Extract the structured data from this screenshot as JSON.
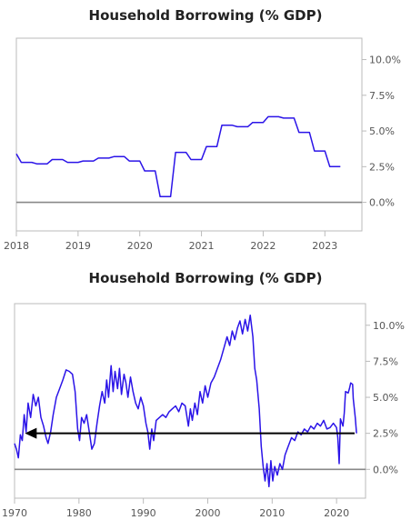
{
  "chart_data": [
    {
      "type": "line",
      "title": "Household Borrowing (% GDP)",
      "xlabel": "",
      "ylabel": "",
      "x_ticks": [
        "2018",
        "2019",
        "2020",
        "2021",
        "2022",
        "2023"
      ],
      "y_ticks": [
        "0.0%",
        "2.5%",
        "5.0%",
        "7.5%",
        "10.0%"
      ],
      "xlim": [
        2018.0,
        2023.6
      ],
      "ylim": [
        -2.0,
        11.5
      ],
      "grid": false,
      "colors": {
        "series": "#2b14e8",
        "zero_line": "#888888",
        "frame": "#bbbbbb"
      },
      "series": [
        {
          "values": [
            [
              2018.0,
              3.4
            ],
            [
              2018.08,
              2.8
            ],
            [
              2018.25,
              2.8
            ],
            [
              2018.33,
              2.7
            ],
            [
              2018.5,
              2.7
            ],
            [
              2018.58,
              3.0
            ],
            [
              2018.75,
              3.0
            ],
            [
              2018.83,
              2.8
            ],
            [
              2019.0,
              2.8
            ],
            [
              2019.08,
              2.9
            ],
            [
              2019.25,
              2.9
            ],
            [
              2019.33,
              3.1
            ],
            [
              2019.5,
              3.1
            ],
            [
              2019.58,
              3.2
            ],
            [
              2019.75,
              3.2
            ],
            [
              2019.83,
              2.9
            ],
            [
              2020.0,
              2.9
            ],
            [
              2020.08,
              2.2
            ],
            [
              2020.25,
              2.2
            ],
            [
              2020.33,
              0.4
            ],
            [
              2020.5,
              0.4
            ],
            [
              2020.58,
              3.5
            ],
            [
              2020.75,
              3.5
            ],
            [
              2020.83,
              3.0
            ],
            [
              2021.0,
              3.0
            ],
            [
              2021.08,
              3.9
            ],
            [
              2021.25,
              3.9
            ],
            [
              2021.33,
              5.4
            ],
            [
              2021.5,
              5.4
            ],
            [
              2021.58,
              5.3
            ],
            [
              2021.75,
              5.3
            ],
            [
              2021.83,
              5.6
            ],
            [
              2022.0,
              5.6
            ],
            [
              2022.08,
              6.0
            ],
            [
              2022.25,
              6.0
            ],
            [
              2022.33,
              5.9
            ],
            [
              2022.5,
              5.9
            ],
            [
              2022.58,
              4.9
            ],
            [
              2022.75,
              4.9
            ],
            [
              2022.83,
              3.6
            ],
            [
              2023.0,
              3.6
            ],
            [
              2023.08,
              2.5
            ],
            [
              2023.25,
              2.5
            ]
          ]
        }
      ]
    },
    {
      "type": "line",
      "title": "Household Borrowing (% GDP)",
      "xlabel": "",
      "ylabel": "",
      "x_ticks": [
        "1970",
        "1980",
        "1990",
        "2000",
        "2010",
        "2020"
      ],
      "y_ticks": [
        "0.0%",
        "2.5%",
        "5.0%",
        "7.5%",
        "10.0%"
      ],
      "xlim": [
        1970.0,
        2024.5
      ],
      "ylim": [
        -2.0,
        11.5
      ],
      "grid": false,
      "annotation": {
        "type": "arrow",
        "from": [
          2022.8,
          2.5
        ],
        "to": [
          1971.6,
          2.5
        ],
        "color": "#000000"
      },
      "colors": {
        "series": "#2b14e8",
        "zero_line": "#888888",
        "frame": "#bbbbbb",
        "arrow": "#000000"
      },
      "series": [
        {
          "values": [
            [
              1970.0,
              1.8
            ],
            [
              1970.3,
              1.4
            ],
            [
              1970.6,
              0.8
            ],
            [
              1970.9,
              2.4
            ],
            [
              1971.2,
              2.0
            ],
            [
              1971.5,
              3.8
            ],
            [
              1971.8,
              2.6
            ],
            [
              1972.1,
              4.6
            ],
            [
              1972.5,
              3.6
            ],
            [
              1972.9,
              5.2
            ],
            [
              1973.3,
              4.4
            ],
            [
              1973.7,
              5.0
            ],
            [
              1974.1,
              3.6
            ],
            [
              1974.5,
              3.0
            ],
            [
              1974.9,
              2.2
            ],
            [
              1975.2,
              1.8
            ],
            [
              1975.6,
              2.6
            ],
            [
              1976.0,
              3.8
            ],
            [
              1976.5,
              5.0
            ],
            [
              1977.0,
              5.6
            ],
            [
              1977.5,
              6.2
            ],
            [
              1978.0,
              6.9
            ],
            [
              1978.5,
              6.8
            ],
            [
              1979.0,
              6.6
            ],
            [
              1979.4,
              5.4
            ],
            [
              1979.8,
              2.8
            ],
            [
              1980.1,
              2.0
            ],
            [
              1980.4,
              3.6
            ],
            [
              1980.8,
              3.2
            ],
            [
              1981.2,
              3.8
            ],
            [
              1981.6,
              2.6
            ],
            [
              1982.0,
              1.4
            ],
            [
              1982.4,
              1.8
            ],
            [
              1982.8,
              3.2
            ],
            [
              1983.2,
              4.4
            ],
            [
              1983.6,
              5.4
            ],
            [
              1984.0,
              4.6
            ],
            [
              1984.3,
              6.2
            ],
            [
              1984.6,
              5.0
            ],
            [
              1985.0,
              7.2
            ],
            [
              1985.3,
              5.4
            ],
            [
              1985.6,
              6.8
            ],
            [
              1986.0,
              5.6
            ],
            [
              1986.3,
              7.0
            ],
            [
              1986.6,
              5.2
            ],
            [
              1987.0,
              6.6
            ],
            [
              1987.3,
              6.0
            ],
            [
              1987.6,
              5.0
            ],
            [
              1988.0,
              6.4
            ],
            [
              1988.4,
              5.4
            ],
            [
              1988.8,
              4.6
            ],
            [
              1989.2,
              4.2
            ],
            [
              1989.6,
              5.0
            ],
            [
              1990.0,
              4.4
            ],
            [
              1990.4,
              3.2
            ],
            [
              1990.7,
              2.6
            ],
            [
              1991.0,
              1.4
            ],
            [
              1991.3,
              2.8
            ],
            [
              1991.6,
              2.0
            ],
            [
              1992.0,
              3.4
            ],
            [
              1992.5,
              3.6
            ],
            [
              1993.0,
              3.8
            ],
            [
              1993.5,
              3.6
            ],
            [
              1994.0,
              4.0
            ],
            [
              1994.5,
              4.2
            ],
            [
              1995.0,
              4.4
            ],
            [
              1995.5,
              4.0
            ],
            [
              1996.0,
              4.6
            ],
            [
              1996.5,
              4.4
            ],
            [
              1997.0,
              3.0
            ],
            [
              1997.3,
              4.2
            ],
            [
              1997.6,
              3.4
            ],
            [
              1998.0,
              4.6
            ],
            [
              1998.4,
              3.8
            ],
            [
              1998.8,
              5.4
            ],
            [
              1999.2,
              4.6
            ],
            [
              1999.6,
              5.8
            ],
            [
              2000.0,
              5.0
            ],
            [
              2000.5,
              6.0
            ],
            [
              2001.0,
              6.4
            ],
            [
              2001.5,
              7.0
            ],
            [
              2002.0,
              7.6
            ],
            [
              2002.5,
              8.4
            ],
            [
              2003.0,
              9.2
            ],
            [
              2003.4,
              8.6
            ],
            [
              2003.8,
              9.6
            ],
            [
              2004.2,
              9.0
            ],
            [
              2004.6,
              9.8
            ],
            [
              2005.0,
              10.3
            ],
            [
              2005.4,
              9.4
            ],
            [
              2005.8,
              10.4
            ],
            [
              2006.2,
              9.6
            ],
            [
              2006.6,
              10.7
            ],
            [
              2007.0,
              9.2
            ],
            [
              2007.3,
              7.0
            ],
            [
              2007.6,
              6.2
            ],
            [
              2008.0,
              4.2
            ],
            [
              2008.3,
              1.6
            ],
            [
              2008.6,
              0.2
            ],
            [
              2008.9,
              -0.8
            ],
            [
              2009.2,
              0.4
            ],
            [
              2009.5,
              -1.2
            ],
            [
              2009.8,
              0.6
            ],
            [
              2010.1,
              -0.8
            ],
            [
              2010.4,
              0.2
            ],
            [
              2010.8,
              -0.4
            ],
            [
              2011.2,
              0.4
            ],
            [
              2011.6,
              0.0
            ],
            [
              2012.0,
              1.0
            ],
            [
              2012.5,
              1.6
            ],
            [
              2013.0,
              2.2
            ],
            [
              2013.5,
              2.0
            ],
            [
              2014.0,
              2.6
            ],
            [
              2014.5,
              2.4
            ],
            [
              2015.0,
              2.8
            ],
            [
              2015.5,
              2.6
            ],
            [
              2016.0,
              3.0
            ],
            [
              2016.5,
              2.8
            ],
            [
              2017.0,
              3.2
            ],
            [
              2017.5,
              3.0
            ],
            [
              2018.0,
              3.4
            ],
            [
              2018.5,
              2.8
            ],
            [
              2019.0,
              2.9
            ],
            [
              2019.5,
              3.2
            ],
            [
              2020.0,
              2.9
            ],
            [
              2020.2,
              2.2
            ],
            [
              2020.4,
              0.4
            ],
            [
              2020.6,
              3.5
            ],
            [
              2021.0,
              3.0
            ],
            [
              2021.2,
              3.9
            ],
            [
              2021.4,
              5.4
            ],
            [
              2021.8,
              5.3
            ],
            [
              2022.0,
              5.6
            ],
            [
              2022.2,
              6.0
            ],
            [
              2022.5,
              5.9
            ],
            [
              2022.6,
              4.9
            ],
            [
              2022.9,
              3.6
            ],
            [
              2023.1,
              2.5
            ]
          ]
        }
      ]
    }
  ]
}
